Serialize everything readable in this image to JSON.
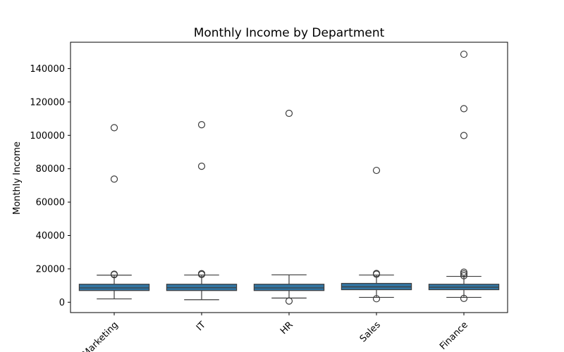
{
  "chart_data": {
    "type": "box",
    "title": "Monthly Income by Department",
    "xlabel": "",
    "ylabel": "Monthly Income",
    "ylim": [
      -6200,
      155800
    ],
    "yticks": [
      0,
      20000,
      40000,
      60000,
      80000,
      100000,
      120000,
      140000
    ],
    "ytick_labels": [
      "0",
      "20000",
      "40000",
      "60000",
      "80000",
      "100000",
      "120000",
      "140000"
    ],
    "grid": false,
    "legend": "none",
    "categories": [
      "Marketing",
      "IT",
      "HR",
      "Sales",
      "Finance"
    ],
    "boxes": [
      {
        "category": "Marketing",
        "whisker_low": 2000,
        "q1": 7000,
        "median": 8600,
        "q3": 10800,
        "whisker_high": 16200,
        "outliers": [
          16500,
          16800,
          73800,
          104600
        ]
      },
      {
        "category": "IT",
        "whisker_low": 1500,
        "q1": 7000,
        "median": 8700,
        "q3": 10800,
        "whisker_high": 16300,
        "outliers": [
          16600,
          17100,
          81500,
          106400
        ]
      },
      {
        "category": "HR",
        "whisker_low": 2500,
        "q1": 7000,
        "median": 8600,
        "q3": 10800,
        "whisker_high": 16400,
        "outliers": [
          700,
          113200
        ]
      },
      {
        "category": "Sales",
        "whisker_low": 2900,
        "q1": 7500,
        "median": 9200,
        "q3": 11300,
        "whisker_high": 16300,
        "outliers": [
          2100,
          16800,
          17200,
          79000
        ]
      },
      {
        "category": "Finance",
        "whisker_low": 2900,
        "q1": 7500,
        "median": 9000,
        "q3": 10800,
        "whisker_high": 15500,
        "outliers": [
          2300,
          15900,
          17000,
          18000,
          99900,
          116000,
          148600
        ]
      }
    ],
    "colors": {
      "box_fill": "#3274a1",
      "line": "#3d3d3d",
      "outlier_edge": "#3d3d3d",
      "axes": "#000000"
    }
  }
}
